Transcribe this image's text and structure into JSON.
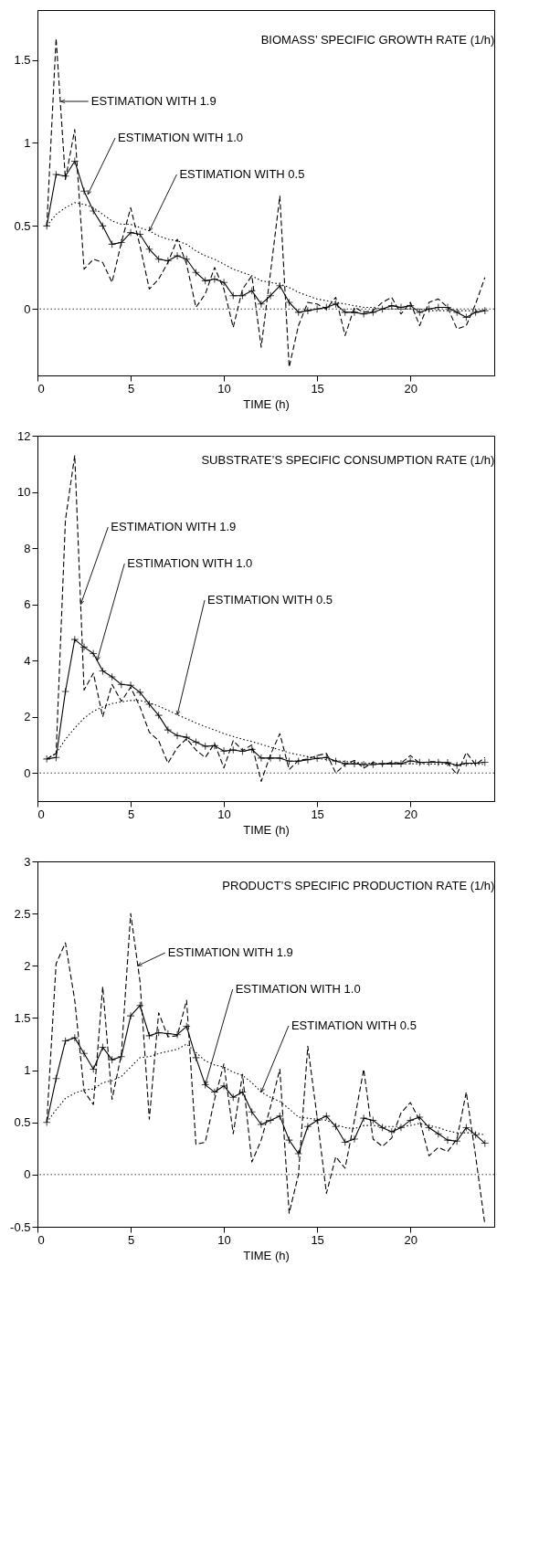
{
  "chart_data": [
    {
      "type": "line",
      "title": "BIOMASS’ SPECIFIC GROWTH RATE (1/h)",
      "xlabel": "TIME (h)",
      "x": [
        0.5,
        1,
        1.5,
        2,
        2.5,
        3,
        3.5,
        4,
        4.5,
        5,
        5.5,
        6,
        6.5,
        7,
        7.5,
        8,
        8.5,
        9,
        9.5,
        10,
        10.5,
        11,
        11.5,
        12,
        12.5,
        13,
        13.5,
        14,
        14.5,
        15,
        15.5,
        16,
        16.5,
        17,
        17.5,
        18,
        18.5,
        19,
        19.5,
        20,
        20.5,
        21,
        21.5,
        22,
        22.5,
        23,
        23.5,
        24
      ],
      "xlim": [
        0,
        24.5
      ],
      "xticks": [
        0,
        5,
        10,
        15,
        20
      ],
      "ylim": [
        -0.4,
        1.8
      ],
      "yticks": [
        0,
        0.5,
        1,
        1.5
      ],
      "grid": false,
      "series": [
        {
          "color": "#000000",
          "line_style": "dashed",
          "marker": "none",
          "values": [
            0.5,
            1.63,
            0.78,
            1.08,
            0.24,
            0.3,
            0.28,
            0.16,
            0.4,
            0.61,
            0.38,
            0.12,
            0.18,
            0.28,
            0.42,
            0.27,
            0.01,
            0.09,
            0.25,
            0.12,
            -0.11,
            0.12,
            0.2,
            -0.23,
            0.22,
            0.68,
            -0.35,
            -0.1,
            0.04,
            0.03,
            0.0,
            0.07,
            -0.16,
            0.01,
            -0.02,
            -0.01,
            0.04,
            0.07,
            -0.03,
            0.04,
            -0.1,
            0.04,
            0.06,
            0.01,
            -0.12,
            -0.1,
            0.03,
            0.19
          ]
        },
        {
          "color": "#000000",
          "line_style": "solid",
          "marker": "cross",
          "values": [
            0.5,
            0.81,
            0.8,
            0.89,
            0.71,
            0.59,
            0.5,
            0.39,
            0.4,
            0.46,
            0.45,
            0.36,
            0.3,
            0.29,
            0.32,
            0.3,
            0.22,
            0.17,
            0.18,
            0.16,
            0.08,
            0.08,
            0.11,
            0.03,
            0.08,
            0.14,
            0.04,
            -0.02,
            -0.01,
            0.0,
            0.01,
            0.03,
            -0.02,
            -0.02,
            -0.03,
            -0.02,
            0.0,
            0.02,
            0.01,
            0.02,
            -0.02,
            0.0,
            0.01,
            0.01,
            -0.02,
            -0.05,
            -0.02,
            -0.01
          ]
        },
        {
          "color": "#000000",
          "line_style": "dotted",
          "marker": "none",
          "values": [
            0.5,
            0.57,
            0.61,
            0.64,
            0.63,
            0.61,
            0.57,
            0.53,
            0.51,
            0.51,
            0.49,
            0.47,
            0.44,
            0.42,
            0.41,
            0.39,
            0.35,
            0.32,
            0.3,
            0.27,
            0.24,
            0.22,
            0.2,
            0.17,
            0.16,
            0.15,
            0.13,
            0.1,
            0.08,
            0.06,
            0.05,
            0.04,
            0.03,
            0.02,
            0.01,
            0.01,
            0.0,
            0.0,
            0.0,
            0.0,
            0.0,
            -0.01,
            -0.01,
            -0.01,
            -0.01,
            -0.01,
            -0.01,
            -0.01
          ]
        }
      ],
      "ref_lines": [
        {
          "axis": "y",
          "value": 0,
          "color": "#000000",
          "line_style": "dotted"
        }
      ],
      "annotations": [
        {
          "text": "ESTIMATION WITH 1.9",
          "x": 1.26,
          "y": 1.25
        },
        {
          "text": "ESTIMATION WITH 1.0",
          "x": 2.7,
          "y": 0.69
        },
        {
          "text": "ESTIMATION WITH 0.5",
          "x": 6,
          "y": 0.47
        }
      ]
    },
    {
      "type": "line",
      "title": "SUBSTRATE’S SPECIFIC CONSUMPTION RATE (1/h)",
      "xlabel": "TIME (h)",
      "x": [
        0.5,
        1,
        1.5,
        2,
        2.5,
        3,
        3.5,
        4,
        4.5,
        5,
        5.5,
        6,
        6.5,
        7,
        7.5,
        8,
        8.5,
        9,
        9.5,
        10,
        10.5,
        11,
        11.5,
        12,
        12.5,
        13,
        13.5,
        14,
        14.5,
        15,
        15.5,
        16,
        16.5,
        17,
        17.5,
        18,
        18.5,
        19,
        19.5,
        20,
        20.5,
        21,
        21.5,
        22,
        22.5,
        23,
        23.5,
        24
      ],
      "xlim": [
        0,
        24.5
      ],
      "xticks": [
        0,
        5,
        10,
        15,
        20
      ],
      "ylim": [
        -1,
        12
      ],
      "yticks": [
        0,
        2,
        4,
        6,
        8,
        10,
        12
      ],
      "grid": false,
      "series": [
        {
          "color": "#000000",
          "line_style": "dashed",
          "marker": "none",
          "values": [
            0.5,
            0.7,
            9.0,
            11.3,
            2.95,
            3.55,
            2.0,
            3.15,
            2.55,
            3.05,
            2.35,
            1.45,
            1.15,
            0.35,
            0.9,
            1.22,
            0.82,
            0.55,
            1.05,
            0.18,
            1.15,
            0.8,
            1.0,
            -0.3,
            0.65,
            1.4,
            0.12,
            0.45,
            0.5,
            0.62,
            0.7,
            0.0,
            0.3,
            0.45,
            0.17,
            0.38,
            0.3,
            0.38,
            0.35,
            0.62,
            0.35,
            0.4,
            0.4,
            0.35,
            -0.05,
            0.73,
            0.3,
            0.55
          ]
        },
        {
          "color": "#000000",
          "line_style": "solid",
          "marker": "cross",
          "values": [
            0.5,
            0.55,
            2.9,
            4.75,
            4.48,
            4.25,
            3.63,
            3.42,
            3.15,
            3.12,
            2.87,
            2.45,
            2.05,
            1.53,
            1.33,
            1.27,
            1.1,
            0.95,
            0.97,
            0.78,
            0.82,
            0.77,
            0.84,
            0.53,
            0.53,
            0.53,
            0.42,
            0.42,
            0.47,
            0.52,
            0.55,
            0.42,
            0.33,
            0.33,
            0.3,
            0.3,
            0.33,
            0.33,
            0.33,
            0.43,
            0.38,
            0.38,
            0.38,
            0.37,
            0.27,
            0.35,
            0.35,
            0.38
          ]
        },
        {
          "color": "#000000",
          "line_style": "dotted",
          "marker": "none",
          "values": [
            0.5,
            0.7,
            1.2,
            1.6,
            1.95,
            2.2,
            2.35,
            2.47,
            2.53,
            2.58,
            2.58,
            2.5,
            2.38,
            2.23,
            2.07,
            1.93,
            1.78,
            1.65,
            1.53,
            1.4,
            1.3,
            1.2,
            1.12,
            1.02,
            0.92,
            0.82,
            0.72,
            0.65,
            0.58,
            0.52,
            0.48,
            0.44,
            0.41,
            0.38,
            0.36,
            0.34,
            0.33,
            0.33,
            0.33,
            0.33,
            0.33,
            0.32,
            0.32,
            0.32,
            0.31,
            0.31,
            0.31,
            0.31
          ]
        }
      ],
      "ref_lines": [
        {
          "axis": "y",
          "value": 0,
          "color": "#000000",
          "line_style": "dotted"
        }
      ],
      "annotations": [
        {
          "text": "ESTIMATION WITH 1.9",
          "x": 2.32,
          "y": 6
        },
        {
          "text": "ESTIMATION WITH 1.0",
          "x": 3.2,
          "y": 4
        },
        {
          "text": "ESTIMATION WITH 0.5",
          "x": 7.5,
          "y": 2.07
        }
      ]
    },
    {
      "type": "line",
      "title": "PRODUCT’S SPECIFIC PRODUCTION RATE (1/h)",
      "xlabel": "TIME (h)",
      "x": [
        0.5,
        1,
        1.5,
        2,
        2.5,
        3,
        3.5,
        4,
        4.5,
        5,
        5.5,
        6,
        6.5,
        7,
        7.5,
        8,
        8.5,
        9,
        9.5,
        10,
        10.5,
        11,
        11.5,
        12,
        12.5,
        13,
        13.5,
        14,
        14.5,
        15,
        15.5,
        16,
        16.5,
        17,
        17.5,
        18,
        18.5,
        19,
        19.5,
        20,
        20.5,
        21,
        21.5,
        22,
        22.5,
        23,
        23.5,
        24
      ],
      "xlim": [
        0,
        24.5
      ],
      "xticks": [
        0,
        5,
        10,
        15,
        20
      ],
      "ylim": [
        -0.5,
        3
      ],
      "yticks": [
        -0.5,
        0,
        0.5,
        1,
        1.5,
        2,
        2.5,
        3
      ],
      "grid": false,
      "series": [
        {
          "color": "#000000",
          "line_style": "dashed",
          "marker": "none",
          "values": [
            0.5,
            2.02,
            2.22,
            1.67,
            0.8,
            0.67,
            1.8,
            0.72,
            1.15,
            2.5,
            1.85,
            0.53,
            1.55,
            1.32,
            1.33,
            1.67,
            0.29,
            0.31,
            0.72,
            1.06,
            0.39,
            0.96,
            0.12,
            0.33,
            0.65,
            1.01,
            -0.37,
            0.0,
            1.23,
            0.55,
            -0.18,
            0.17,
            0.06,
            0.52,
            1.01,
            0.34,
            0.27,
            0.35,
            0.59,
            0.69,
            0.52,
            0.18,
            0.26,
            0.22,
            0.34,
            0.79,
            0.18,
            -0.48
          ]
        },
        {
          "color": "#000000",
          "line_style": "solid",
          "marker": "cross",
          "values": [
            0.5,
            0.92,
            1.28,
            1.31,
            1.16,
            1.01,
            1.22,
            1.1,
            1.13,
            1.52,
            1.62,
            1.33,
            1.36,
            1.35,
            1.34,
            1.42,
            1.12,
            0.86,
            0.79,
            0.85,
            0.74,
            0.79,
            0.6,
            0.48,
            0.52,
            0.56,
            0.33,
            0.2,
            0.46,
            0.52,
            0.56,
            0.46,
            0.31,
            0.34,
            0.54,
            0.52,
            0.45,
            0.41,
            0.45,
            0.52,
            0.55,
            0.45,
            0.39,
            0.33,
            0.32,
            0.45,
            0.38,
            0.3
          ]
        },
        {
          "color": "#000000",
          "line_style": "dotted",
          "marker": "none",
          "values": [
            0.5,
            0.62,
            0.73,
            0.78,
            0.81,
            0.82,
            0.88,
            0.9,
            0.94,
            1.03,
            1.12,
            1.13,
            1.16,
            1.18,
            1.2,
            1.25,
            1.17,
            1.09,
            1.05,
            1.03,
            0.98,
            0.95,
            0.88,
            0.79,
            0.74,
            0.7,
            0.63,
            0.55,
            0.54,
            0.53,
            0.52,
            0.48,
            0.45,
            0.44,
            0.47,
            0.47,
            0.46,
            0.46,
            0.46,
            0.47,
            0.49,
            0.47,
            0.45,
            0.42,
            0.4,
            0.4,
            0.4,
            0.38
          ]
        }
      ],
      "ref_lines": [
        {
          "axis": "y",
          "value": 0,
          "color": "#000000",
          "line_style": "dotted"
        }
      ],
      "annotations": [
        {
          "text": "ESTIMATION WITH 1.9",
          "x": 5.38,
          "y": 2.0
        },
        {
          "text": "ESTIMATION WITH 1.0",
          "x": 9,
          "y": 0.86
        },
        {
          "text": "ESTIMATION WITH 0.5",
          "x": 12,
          "y": 0.79
        }
      ]
    }
  ]
}
